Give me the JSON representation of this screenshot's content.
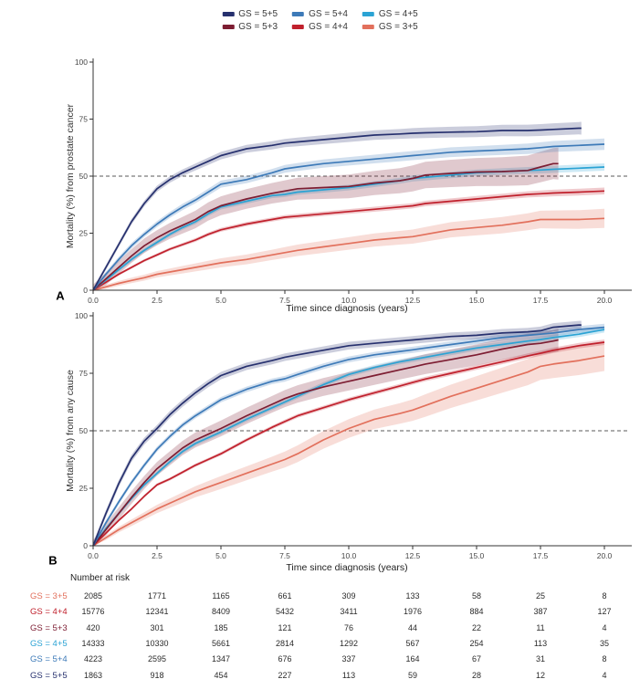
{
  "legend": {
    "items": [
      {
        "label": "GS = 5+5",
        "color": "#26306e"
      },
      {
        "label": "GS = 5+4",
        "color": "#3d7ab8"
      },
      {
        "label": "GS = 4+5",
        "color": "#2ba3d4"
      },
      {
        "label": "GS = 5+3",
        "color": "#7d1d32"
      },
      {
        "label": "GS = 4+4",
        "color": "#c0202c"
      },
      {
        "label": "GS = 3+5",
        "color": "#e2705c"
      }
    ]
  },
  "chart_data": [
    {
      "type": "line",
      "panel_label": "A",
      "title": "",
      "ylabel": "Mortality (%) from prostate cancer",
      "xlabel": "Time since diagnosis (years)",
      "xlim": [
        0,
        20
      ],
      "ylim": [
        0,
        100
      ],
      "xticks": [
        0,
        2.5,
        5,
        7.5,
        10,
        12.5,
        15,
        17.5,
        20
      ],
      "xtick_labels": [
        "0.0",
        "2.5",
        "5.0",
        "7.5",
        "10.0",
        "12.5",
        "15.0",
        "17.5",
        "20.0"
      ],
      "yticks": [
        0,
        25,
        50,
        75,
        100
      ],
      "ytick_labels": [
        "0",
        "25",
        "50",
        "75",
        "100"
      ],
      "refline_y": 50,
      "grid": false,
      "legend_position": "top",
      "series": [
        {
          "key": "gs35",
          "label": "GS = 3+5",
          "color": "#e2705c",
          "ci": [
            0.8,
            4.2
          ],
          "x": [
            0,
            0.5,
            1,
            1.5,
            2,
            2.5,
            3,
            3.5,
            4,
            4.5,
            5,
            6,
            7,
            7.5,
            8,
            9,
            10,
            11,
            12,
            12.5,
            13,
            14,
            15,
            16,
            17,
            17.5,
            18,
            19,
            20
          ],
          "y": [
            0,
            1.5,
            3,
            4.3,
            5.5,
            7,
            8,
            9,
            10,
            11,
            12,
            13.5,
            15.5,
            16.5,
            17.5,
            19,
            20.5,
            22,
            23,
            23.5,
            24.5,
            26.5,
            27.5,
            28.5,
            30,
            31,
            31,
            31,
            31.5
          ]
        },
        {
          "key": "gs44",
          "label": "GS = 4+4",
          "color": "#c0202c",
          "ci": [
            0.5,
            1.5
          ],
          "x": [
            0,
            0.5,
            1,
            1.5,
            2,
            2.5,
            3,
            3.5,
            4,
            4.5,
            5,
            6,
            7,
            7.5,
            8,
            9,
            10,
            11,
            12,
            12.5,
            13,
            14,
            15,
            16,
            17,
            17.5,
            18,
            19,
            20
          ],
          "y": [
            0,
            3.5,
            7,
            10,
            13,
            15.5,
            18,
            20,
            22,
            24.5,
            26.5,
            29,
            31,
            32,
            32.5,
            33.5,
            34.5,
            35.5,
            36.5,
            37,
            38,
            39,
            40,
            41,
            42,
            42.3,
            42.6,
            43,
            43.5
          ]
        },
        {
          "key": "gs45",
          "label": "GS = 4+5",
          "color": "#2ba3d4",
          "ci": [
            0.8,
            1.6
          ],
          "x": [
            0,
            0.5,
            1,
            1.5,
            2,
            2.5,
            3,
            3.5,
            4,
            4.5,
            5,
            6,
            7,
            7.5,
            8,
            9,
            10,
            11,
            12,
            12.5,
            13,
            14,
            15,
            16,
            17,
            17.5,
            18,
            19,
            20
          ],
          "y": [
            0,
            4.5,
            9,
            13.5,
            17.5,
            21,
            24.5,
            27.5,
            30,
            33.5,
            36.5,
            39,
            41.5,
            42,
            43,
            44,
            45,
            46.5,
            48,
            49,
            49.5,
            50.5,
            51.5,
            52,
            52.5,
            52.7,
            53,
            53.5,
            54
          ]
        },
        {
          "key": "gs53",
          "label": "GS = 5+3",
          "color": "#7d1d32",
          "ci": [
            2.5,
            7
          ],
          "x": [
            0,
            0.5,
            1,
            1.5,
            2,
            2.5,
            3,
            3.5,
            4,
            4.5,
            5,
            6,
            7,
            7.5,
            8,
            9,
            10,
            11,
            12,
            12.5,
            13,
            14,
            15,
            16,
            17,
            17.5,
            18,
            18.2
          ],
          "y": [
            0,
            5,
            10,
            15,
            19.5,
            23,
            26,
            28.5,
            31,
            34.5,
            37,
            40,
            42.5,
            43.5,
            44.5,
            45,
            45.5,
            47,
            48,
            49,
            50.5,
            51.2,
            51.8,
            52,
            52.5,
            54,
            55.5,
            55.5
          ]
        },
        {
          "key": "gs54",
          "label": "GS = 5+4",
          "color": "#3d7ab8",
          "ci": [
            1,
            2.5
          ],
          "x": [
            0,
            0.5,
            1,
            1.5,
            2,
            2.5,
            3,
            3.5,
            4,
            4.5,
            5,
            6,
            7,
            7.5,
            8,
            9,
            10,
            11,
            12,
            12.5,
            13,
            14,
            15,
            16,
            17,
            17.5,
            18,
            19,
            20
          ],
          "y": [
            0,
            7,
            13.5,
            19.5,
            24.5,
            29,
            33,
            36.5,
            39.5,
            43,
            46.5,
            48.5,
            51.5,
            53.2,
            54,
            55.5,
            56.5,
            57.5,
            58.5,
            59,
            59.5,
            60.5,
            61,
            61.5,
            62,
            62.5,
            63,
            63.5,
            64
          ]
        },
        {
          "key": "gs55",
          "label": "GS = 5+5",
          "color": "#26306e",
          "ci": [
            1,
            2.8
          ],
          "x": [
            0,
            0.5,
            1,
            1.5,
            2,
            2.5,
            3,
            3.5,
            4,
            4.5,
            5,
            6,
            7,
            7.5,
            8,
            9,
            10,
            11,
            12,
            12.5,
            13,
            14,
            15,
            16,
            17,
            17.5,
            18,
            19,
            19.1
          ],
          "y": [
            0,
            10,
            20,
            30,
            38,
            44.5,
            48.5,
            51.5,
            54,
            56.5,
            59,
            62,
            63.5,
            64.5,
            65,
            66,
            67,
            68,
            68.5,
            68.8,
            69,
            69.3,
            69.5,
            70,
            70,
            70.2,
            70.5,
            71,
            71
          ]
        }
      ]
    },
    {
      "type": "line",
      "panel_label": "B",
      "title": "",
      "ylabel": "Mortality (%) from any cause",
      "xlabel": "Time since diagnosis (years)",
      "xlim": [
        0,
        20
      ],
      "ylim": [
        0,
        100
      ],
      "xticks": [
        0,
        2.5,
        5,
        7.5,
        10,
        12.5,
        15,
        17.5,
        20
      ],
      "xtick_labels": [
        "0.0",
        "2.5",
        "5.0",
        "7.5",
        "10.0",
        "12.5",
        "15.0",
        "17.5",
        "20.0"
      ],
      "yticks": [
        0,
        25,
        50,
        75,
        100
      ],
      "ytick_labels": [
        "0",
        "25",
        "50",
        "75",
        "100"
      ],
      "refline_y": 50,
      "grid": false,
      "legend_position": "top",
      "series": [
        {
          "key": "gs35",
          "label": "GS = 3+5",
          "color": "#e2705c",
          "ci": [
            0.8,
            6.5
          ],
          "x": [
            0,
            0.5,
            1,
            1.5,
            2,
            2.5,
            3,
            3.5,
            4,
            4.5,
            5,
            6,
            7,
            7.5,
            8,
            9,
            10,
            11,
            12,
            12.5,
            13,
            14,
            15,
            16,
            17,
            17.5,
            18,
            19,
            20
          ],
          "y": [
            0,
            3.5,
            7,
            10,
            13,
            16,
            18.5,
            21,
            23.5,
            25.5,
            27.5,
            31.5,
            35.5,
            37.5,
            40,
            46,
            51,
            55,
            57.5,
            59,
            61,
            65,
            68.5,
            72,
            75.5,
            78,
            79,
            80.5,
            82.5
          ]
        },
        {
          "key": "gs44",
          "label": "GS = 4+4",
          "color": "#c0202c",
          "ci": [
            0.5,
            1.2
          ],
          "x": [
            0,
            0.5,
            1,
            1.5,
            2,
            2.5,
            3,
            3.5,
            4,
            4.5,
            5,
            6,
            7,
            7.5,
            8,
            9,
            10,
            11,
            12,
            12.5,
            13,
            14,
            15,
            16,
            17,
            17.5,
            18,
            19,
            20
          ],
          "y": [
            0,
            5.5,
            11,
            16,
            21.5,
            26.5,
            29,
            32,
            35,
            37.5,
            40,
            46,
            51.5,
            54,
            56.5,
            60,
            63.5,
            66.5,
            69.5,
            71,
            72.5,
            75,
            77.5,
            80,
            82.5,
            83.7,
            85,
            87,
            88.5
          ]
        },
        {
          "key": "gs45",
          "label": "GS = 4+5",
          "color": "#2ba3d4",
          "ci": [
            0.8,
            1.3
          ],
          "x": [
            0,
            0.5,
            1,
            1.5,
            2,
            2.5,
            3,
            3.5,
            4,
            4.5,
            5,
            6,
            7,
            7.5,
            8,
            9,
            10,
            11,
            12,
            12.5,
            13,
            14,
            15,
            16,
            17,
            17.5,
            18,
            19,
            20
          ],
          "y": [
            0,
            7.5,
            14,
            20.5,
            26.5,
            31.5,
            36.5,
            41,
            44.5,
            47,
            49.5,
            55,
            60,
            62.5,
            65,
            70,
            74.5,
            77.5,
            80,
            81,
            82,
            84,
            86,
            87.5,
            89,
            89.7,
            90.5,
            92,
            94
          ]
        },
        {
          "key": "gs53",
          "label": "GS = 5+3",
          "color": "#7d1d32",
          "ci": [
            2.5,
            5
          ],
          "x": [
            0,
            0.5,
            1,
            1.5,
            2,
            2.5,
            3,
            3.5,
            4,
            4.5,
            5,
            6,
            7,
            7.5,
            8,
            9,
            10,
            11,
            12,
            12.5,
            13,
            14,
            15,
            16,
            17,
            17.5,
            18,
            18.2
          ],
          "y": [
            0,
            7,
            14,
            21,
            27.5,
            33.5,
            38,
            42.5,
            46,
            48.5,
            51,
            56.5,
            61.5,
            64,
            66,
            69,
            71.5,
            74,
            76.5,
            77.7,
            79,
            81,
            83,
            85.5,
            87.5,
            88,
            89,
            89.5
          ]
        },
        {
          "key": "gs54",
          "label": "GS = 5+4",
          "color": "#3d7ab8",
          "ci": [
            1,
            1.5
          ],
          "x": [
            0,
            0.5,
            1,
            1.5,
            2,
            2.5,
            3,
            3.5,
            4,
            4.5,
            5,
            6,
            7,
            7.5,
            8,
            9,
            10,
            11,
            12,
            12.5,
            13,
            14,
            15,
            16,
            17,
            17.5,
            18,
            19,
            20
          ],
          "y": [
            0,
            10,
            19,
            27.5,
            35,
            42,
            47.5,
            52.5,
            56.5,
            60,
            63.5,
            68,
            71.5,
            72.6,
            74.5,
            78,
            81,
            83,
            84.5,
            85.2,
            86,
            87.5,
            89,
            90.5,
            91.5,
            92,
            92.5,
            94,
            95
          ]
        },
        {
          "key": "gs55",
          "label": "GS = 5+5",
          "color": "#26306e",
          "ci": [
            1.5,
            1.8
          ],
          "x": [
            0,
            0.5,
            1,
            1.5,
            2,
            2.5,
            3,
            3.5,
            4,
            4.5,
            5,
            6,
            7,
            7.5,
            8,
            9,
            10,
            11,
            12,
            12.5,
            13,
            14,
            15,
            16,
            17,
            17.5,
            18,
            19,
            19.1
          ],
          "y": [
            0,
            14,
            27,
            38,
            45.5,
            51,
            57,
            62,
            66.5,
            70.5,
            74,
            78,
            80.5,
            82,
            83,
            85,
            87,
            88,
            89,
            89.5,
            90,
            91,
            91.5,
            92.5,
            93,
            93.5,
            95,
            96,
            96
          ]
        }
      ]
    },
    {
      "type": "table",
      "title": "Number at risk",
      "columns": [
        0,
        2.5,
        5,
        7.5,
        10,
        12.5,
        15,
        17.5,
        20
      ],
      "rows": [
        {
          "label": "GS = 3+5",
          "color": "#e2705c",
          "values": [
            2085,
            1771,
            1165,
            661,
            309,
            133,
            58,
            25,
            8
          ]
        },
        {
          "label": "GS = 4+4",
          "color": "#c0202c",
          "values": [
            15776,
            12341,
            8409,
            5432,
            3411,
            1976,
            884,
            387,
            127
          ]
        },
        {
          "label": "GS = 5+3",
          "color": "#7d1d32",
          "values": [
            420,
            301,
            185,
            121,
            76,
            44,
            22,
            11,
            4
          ]
        },
        {
          "label": "GS = 4+5",
          "color": "#2ba3d4",
          "values": [
            14333,
            10330,
            5661,
            2814,
            1292,
            567,
            254,
            113,
            35
          ]
        },
        {
          "label": "GS = 5+4",
          "color": "#3d7ab8",
          "values": [
            4223,
            2595,
            1347,
            676,
            337,
            164,
            67,
            31,
            8
          ]
        },
        {
          "label": "GS = 5+5",
          "color": "#26306e",
          "values": [
            1863,
            918,
            454,
            227,
            113,
            59,
            28,
            12,
            4
          ]
        }
      ]
    }
  ]
}
